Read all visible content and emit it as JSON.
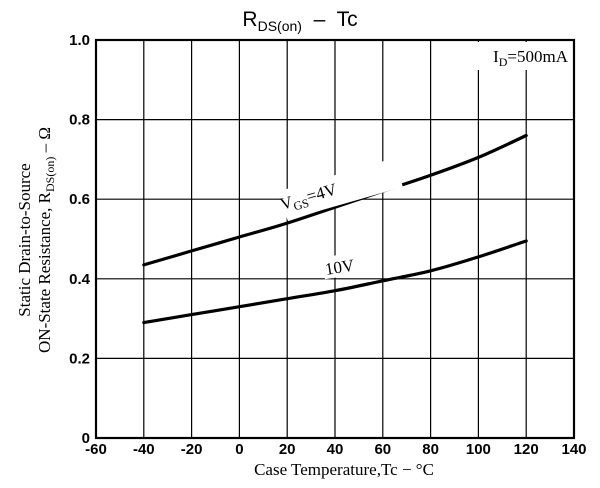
{
  "chart_data": {
    "type": "line",
    "title": {
      "main": "R",
      "sub": "DS(on)",
      "rest": "  –  Tc"
    },
    "xlabel": "Case Temperature,Tc − °C",
    "ylabel": {
      "line1": "Static Drain-to-Source",
      "line2_main": "ON-State Resistance, R",
      "line2_sub": "DS(on)",
      "line2_rest": " – Ω"
    },
    "condition": {
      "main": "I",
      "sub": "D",
      "rest": "=500mA"
    },
    "xlim": [
      -60,
      140
    ],
    "ylim": [
      0,
      1.0
    ],
    "x_ticks": [
      "-60",
      "-40",
      "-20",
      "0",
      "20",
      "40",
      "60",
      "80",
      "100",
      "120",
      "140"
    ],
    "y_ticks": [
      "0",
      "0.2",
      "0.4",
      "0.6",
      "0.8",
      "1.0"
    ],
    "grid": true,
    "series": [
      {
        "name": {
          "main": "V",
          "sub": "GS",
          "rest": "=4V"
        },
        "x": [
          -40,
          -20,
          0,
          20,
          40,
          60,
          80,
          100,
          120
        ],
        "y": [
          0.435,
          0.47,
          0.505,
          0.54,
          0.58,
          0.62,
          0.66,
          0.705,
          0.76
        ]
      },
      {
        "name": {
          "main": "10V"
        },
        "x": [
          -40,
          -20,
          0,
          20,
          40,
          60,
          80,
          100,
          120
        ],
        "y": [
          0.29,
          0.31,
          0.33,
          0.35,
          0.37,
          0.395,
          0.42,
          0.455,
          0.495
        ]
      }
    ]
  }
}
